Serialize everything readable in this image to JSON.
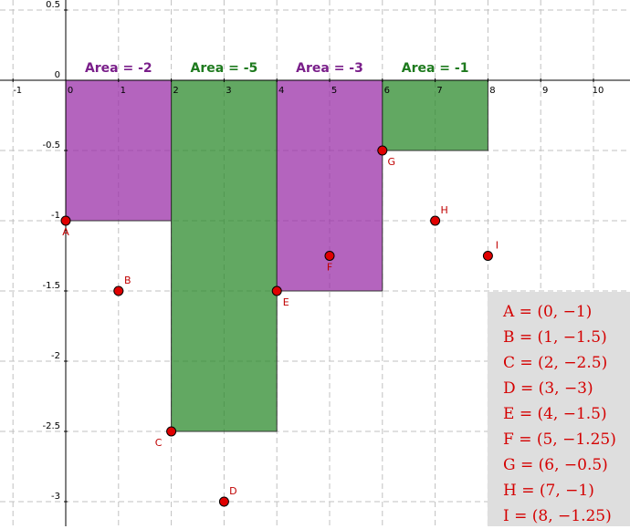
{
  "chart_data": {
    "type": "area",
    "xlim": [
      -1.1,
      10.6
    ],
    "ylim": [
      -3.15,
      0.55
    ],
    "grid": true,
    "x_ticks": [
      -1,
      0,
      1,
      2,
      3,
      4,
      5,
      6,
      7,
      8,
      9,
      10
    ],
    "x_tick_labels": [
      "-1",
      "0",
      "1",
      "2",
      "3",
      "4",
      "5",
      "6",
      "7",
      "8",
      "9",
      "10"
    ],
    "y_ticks": [
      0.5,
      0,
      -0.5,
      -1,
      -1.5,
      -2,
      -2.5,
      -3
    ],
    "y_tick_labels": [
      "0.5",
      "0",
      "-0.5",
      "-1",
      "-1.5",
      "-2",
      "-2.5",
      "-3"
    ],
    "rectangles": [
      {
        "x0": 0,
        "x1": 2,
        "height": -1,
        "label": "Area = -2",
        "color": "#9b30a8",
        "label_color": "#7a1f8a"
      },
      {
        "x0": 2,
        "x1": 4,
        "height": -2.5,
        "label": "Area = -5",
        "color": "#2e8b2e",
        "label_color": "#1e7a1e"
      },
      {
        "x0": 4,
        "x1": 6,
        "height": -1.5,
        "label": "Area = -3",
        "color": "#9b30a8",
        "label_color": "#7a1f8a"
      },
      {
        "x0": 6,
        "x1": 8,
        "height": -0.5,
        "label": "Area = -1",
        "color": "#2e8b2e",
        "label_color": "#1e7a1e"
      }
    ],
    "points": [
      {
        "name": "A",
        "x": 0,
        "y": -1,
        "label_pos": "below"
      },
      {
        "name": "B",
        "x": 1,
        "y": -1.5,
        "label_pos": "above-right"
      },
      {
        "name": "C",
        "x": 2,
        "y": -2.5,
        "label_pos": "below-left"
      },
      {
        "name": "D",
        "x": 3,
        "y": -3,
        "label_pos": "above-right"
      },
      {
        "name": "E",
        "x": 4,
        "y": -1.5,
        "label_pos": "below-right"
      },
      {
        "name": "F",
        "x": 5,
        "y": -1.25,
        "label_pos": "below"
      },
      {
        "name": "G",
        "x": 6,
        "y": -0.5,
        "label_pos": "below-right"
      },
      {
        "name": "H",
        "x": 7,
        "y": -1,
        "label_pos": "above-right"
      },
      {
        "name": "I",
        "x": 8,
        "y": -1.25,
        "label_pos": "above-right"
      }
    ],
    "point_color": "#e00000",
    "legend_position": "bottom-right",
    "legend_entries": [
      "A = (0, −1)",
      "B = (1, −1.5)",
      "C = (2, −2.5)",
      "D = (3, −3)",
      "E = (4, −1.5)",
      "F = (5, −1.25)",
      "G = (6, −0.5)",
      "H = (7, −1)",
      "I = (8, −1.25)"
    ]
  }
}
